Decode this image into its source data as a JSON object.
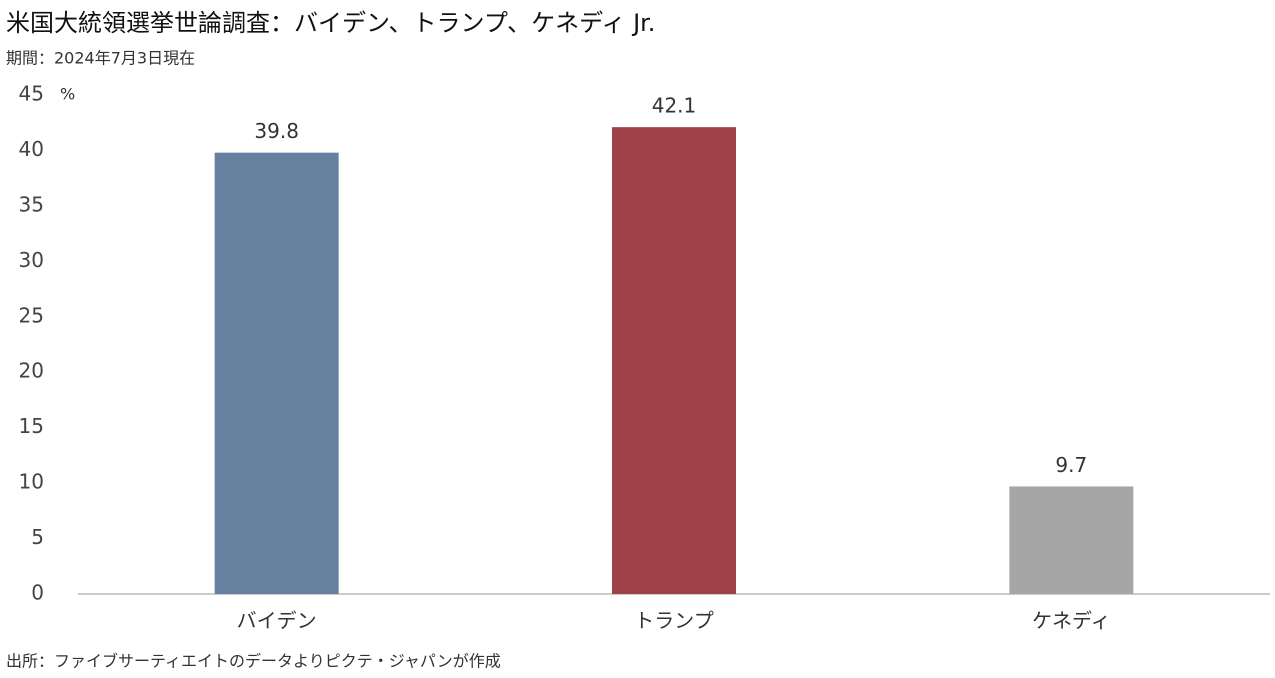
{
  "chart_data": {
    "type": "bar",
    "title": "米国大統領選挙世論調査：バイデン、トランプ、ケネディ Jr.",
    "subtitle": "期間：2024年7月3日現在",
    "y_unit": "%",
    "source": "出所：ファイブサーティエイトのデータよりピクテ・ジャパンが作成",
    "categories": [
      "バイデン",
      "トランプ",
      "ケネディ"
    ],
    "values": [
      39.8,
      42.1,
      9.7
    ],
    "colors": [
      "#66819f",
      "#a04048",
      "#a6a6a6"
    ],
    "ylim": [
      0,
      45
    ],
    "yticks": [
      0,
      5,
      10,
      15,
      20,
      25,
      30,
      35,
      40,
      45
    ],
    "grid": false
  }
}
